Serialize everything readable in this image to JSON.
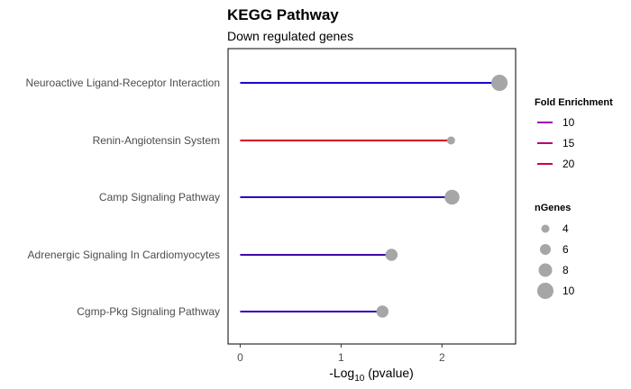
{
  "chart_data": {
    "type": "lollipop",
    "title": "KEGG Pathway",
    "subtitle": "Down regulated genes",
    "xlabel": {
      "prefix": "-Log",
      "sub": "10",
      "suffix": " (pvalue)"
    },
    "xlim": [
      -0.12,
      2.73
    ],
    "xticks": [
      0,
      1,
      2
    ],
    "categories": [
      "Neuroactive Ligand-Receptor Interaction",
      "Renin-Angiotensin System",
      "Camp Signaling Pathway",
      "Adrenergic Signaling In Cardiomyocytes",
      "Cgmp-Pkg Signaling Pathway"
    ],
    "neg_log10_pvalue": [
      2.57,
      2.09,
      2.1,
      1.5,
      1.41
    ],
    "fold_enrichment": [
      8.5,
      21.0,
      9.5,
      11.0,
      10.0
    ],
    "n_genes": [
      10,
      4,
      9,
      7,
      7
    ],
    "point_color": "#a6a6a6",
    "fold_enrichment_scale": {
      "low": 8.5,
      "high": 21.0,
      "low_color": "#1c00cc",
      "high_color": "#d6002a"
    },
    "legend_fold_enrichment": {
      "title": "Fold Enrichment",
      "entries": [
        {
          "label": "10",
          "color": "#9a00b4"
        },
        {
          "label": "15",
          "color": "#b8007a"
        },
        {
          "label": "20",
          "color": "#d10040"
        }
      ]
    },
    "legend_ngenes": {
      "title": "nGenes",
      "entries": [
        {
          "label": "4",
          "value": 4
        },
        {
          "label": "6",
          "value": 6
        },
        {
          "label": "8",
          "value": 8
        },
        {
          "label": "10",
          "value": 10
        }
      ]
    },
    "grid": false,
    "legend_position": "right"
  }
}
